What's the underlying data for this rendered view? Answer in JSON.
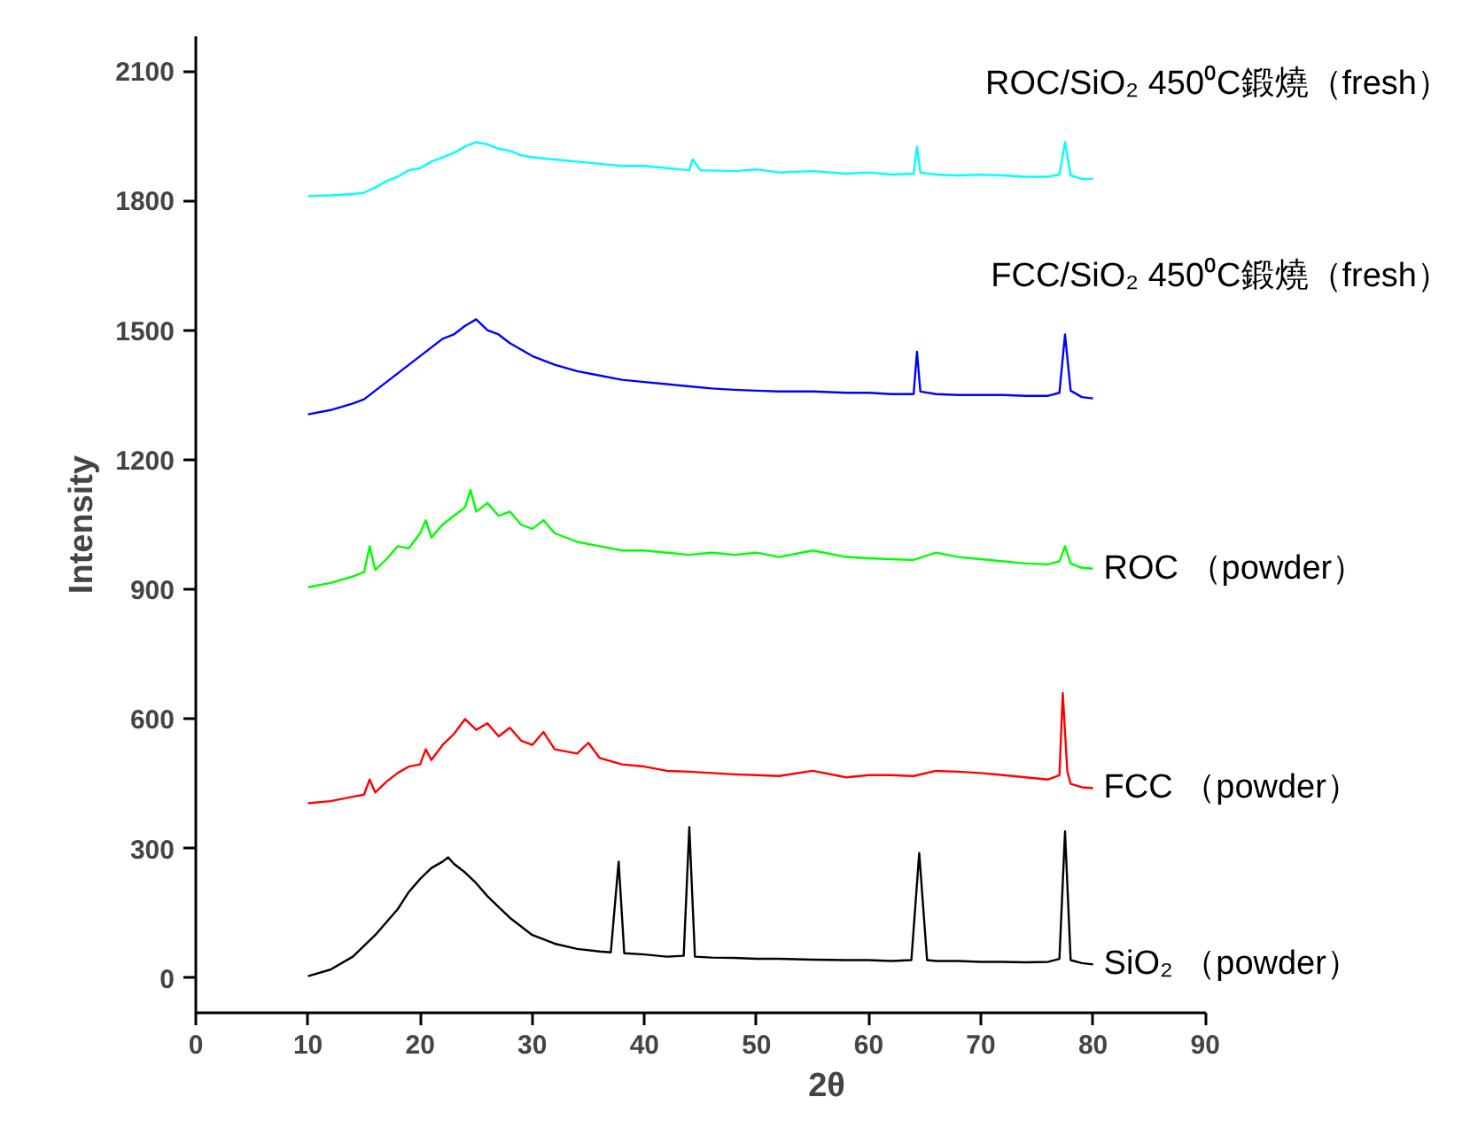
{
  "chart_data": {
    "type": "line",
    "xlabel": "2θ",
    "ylabel": "Intensity",
    "xlim": [
      0,
      90
    ],
    "ylim": [
      -80,
      2180
    ],
    "xticks": [
      0,
      10,
      20,
      30,
      40,
      50,
      60,
      70,
      80,
      90
    ],
    "yticks": [
      0,
      300,
      600,
      900,
      1200,
      1500,
      1800,
      2100
    ],
    "grid": false,
    "marker": "none",
    "line_style": "solid",
    "series": [
      {
        "name": "ROC/SiO₂ 450⁰C鍛燒（fresh）",
        "color": "#00ffff",
        "x": [
          10,
          12,
          14,
          15,
          16,
          17,
          18,
          19,
          20,
          21,
          22,
          23,
          24,
          25,
          26,
          27,
          28,
          29,
          30,
          32,
          34,
          36,
          38,
          40,
          42,
          44,
          44.3,
          45,
          48,
          50,
          52,
          55,
          58,
          60,
          62,
          64,
          64.3,
          64.6,
          66,
          68,
          70,
          72,
          74,
          76,
          77,
          77.5,
          78,
          79,
          80
        ],
        "values": [
          1810,
          1812,
          1815,
          1818,
          1830,
          1845,
          1855,
          1870,
          1875,
          1890,
          1900,
          1910,
          1925,
          1935,
          1930,
          1920,
          1915,
          1905,
          1900,
          1895,
          1890,
          1885,
          1880,
          1880,
          1875,
          1870,
          1895,
          1870,
          1868,
          1872,
          1865,
          1868,
          1862,
          1865,
          1860,
          1862,
          1925,
          1865,
          1860,
          1858,
          1860,
          1858,
          1855,
          1855,
          1860,
          1935,
          1858,
          1850,
          1850
        ]
      },
      {
        "name": "FCC/SiO₂ 450⁰C鍛燒（fresh）",
        "color": "#0000ff",
        "x": [
          10,
          12,
          14,
          15,
          16,
          17,
          18,
          19,
          20,
          21,
          22,
          23,
          24,
          25,
          26,
          27,
          28,
          29,
          30,
          32,
          34,
          36,
          38,
          40,
          42,
          44,
          46,
          48,
          50,
          52,
          55,
          58,
          60,
          62,
          64,
          64.3,
          64.6,
          66,
          68,
          70,
          72,
          74,
          76,
          77,
          77.5,
          78,
          79,
          80
        ],
        "values": [
          1305,
          1315,
          1330,
          1340,
          1360,
          1380,
          1400,
          1420,
          1440,
          1460,
          1480,
          1490,
          1510,
          1525,
          1500,
          1490,
          1470,
          1455,
          1440,
          1420,
          1405,
          1395,
          1385,
          1380,
          1375,
          1370,
          1365,
          1362,
          1360,
          1358,
          1358,
          1355,
          1355,
          1352,
          1352,
          1450,
          1358,
          1352,
          1350,
          1350,
          1350,
          1348,
          1348,
          1355,
          1490,
          1360,
          1345,
          1342
        ]
      },
      {
        "name": "ROC （powder）",
        "color": "#00ff00",
        "x": [
          10,
          12,
          14,
          15,
          15.5,
          16,
          17,
          18,
          19,
          20,
          20.5,
          21,
          22,
          23,
          24,
          24.5,
          25,
          26,
          27,
          28,
          29,
          30,
          31,
          32,
          34,
          36,
          38,
          40,
          42,
          44,
          46,
          48,
          50,
          52,
          55,
          58,
          60,
          62,
          64,
          66,
          68,
          70,
          72,
          74,
          76,
          77,
          77.5,
          78,
          79,
          80
        ],
        "values": [
          905,
          915,
          930,
          940,
          1000,
          945,
          970,
          1000,
          995,
          1030,
          1060,
          1020,
          1050,
          1070,
          1090,
          1130,
          1080,
          1100,
          1070,
          1080,
          1050,
          1040,
          1060,
          1030,
          1010,
          1000,
          990,
          990,
          985,
          980,
          985,
          980,
          985,
          975,
          990,
          975,
          972,
          970,
          968,
          985,
          975,
          970,
          965,
          960,
          958,
          965,
          1000,
          960,
          950,
          948
        ]
      },
      {
        "name": "FCC （powder）",
        "color": "#ff0000",
        "x": [
          10,
          12,
          14,
          15,
          15.5,
          16,
          17,
          18,
          19,
          20,
          20.5,
          21,
          22,
          23,
          24,
          25,
          26,
          27,
          28,
          29,
          30,
          31,
          32,
          34,
          35,
          36,
          38,
          40,
          42,
          44,
          46,
          48,
          50,
          52,
          55,
          58,
          60,
          62,
          64,
          66,
          68,
          70,
          72,
          74,
          76,
          77,
          77.3,
          77.7,
          78,
          79,
          80
        ],
        "values": [
          405,
          410,
          420,
          425,
          460,
          430,
          455,
          475,
          490,
          495,
          530,
          505,
          540,
          565,
          600,
          575,
          590,
          560,
          580,
          550,
          540,
          570,
          530,
          520,
          545,
          510,
          495,
          490,
          480,
          478,
          475,
          472,
          470,
          468,
          480,
          465,
          470,
          470,
          468,
          480,
          478,
          475,
          470,
          465,
          460,
          470,
          660,
          480,
          450,
          442,
          440
        ]
      },
      {
        "name": "SiO₂ （powder）",
        "color": "#000000",
        "x": [
          10,
          12,
          14,
          16,
          18,
          19,
          20,
          21,
          22,
          22.5,
          23,
          24,
          25,
          26,
          27,
          28,
          29,
          30,
          32,
          34,
          36,
          37,
          37.7,
          38.2,
          40,
          42,
          43.5,
          44,
          44.5,
          46,
          48,
          50,
          52,
          55,
          58,
          60,
          62,
          63.8,
          64.5,
          65.2,
          66,
          68,
          70,
          72,
          74,
          76,
          77,
          77.5,
          78,
          79,
          80
        ],
        "values": [
          5,
          20,
          50,
          100,
          160,
          200,
          230,
          255,
          270,
          280,
          265,
          245,
          220,
          190,
          165,
          140,
          120,
          100,
          80,
          68,
          62,
          60,
          270,
          58,
          55,
          50,
          52,
          350,
          50,
          48,
          47,
          45,
          45,
          43,
          42,
          42,
          40,
          42,
          290,
          42,
          40,
          40,
          38,
          38,
          37,
          38,
          45,
          340,
          42,
          35,
          32
        ]
      }
    ]
  }
}
